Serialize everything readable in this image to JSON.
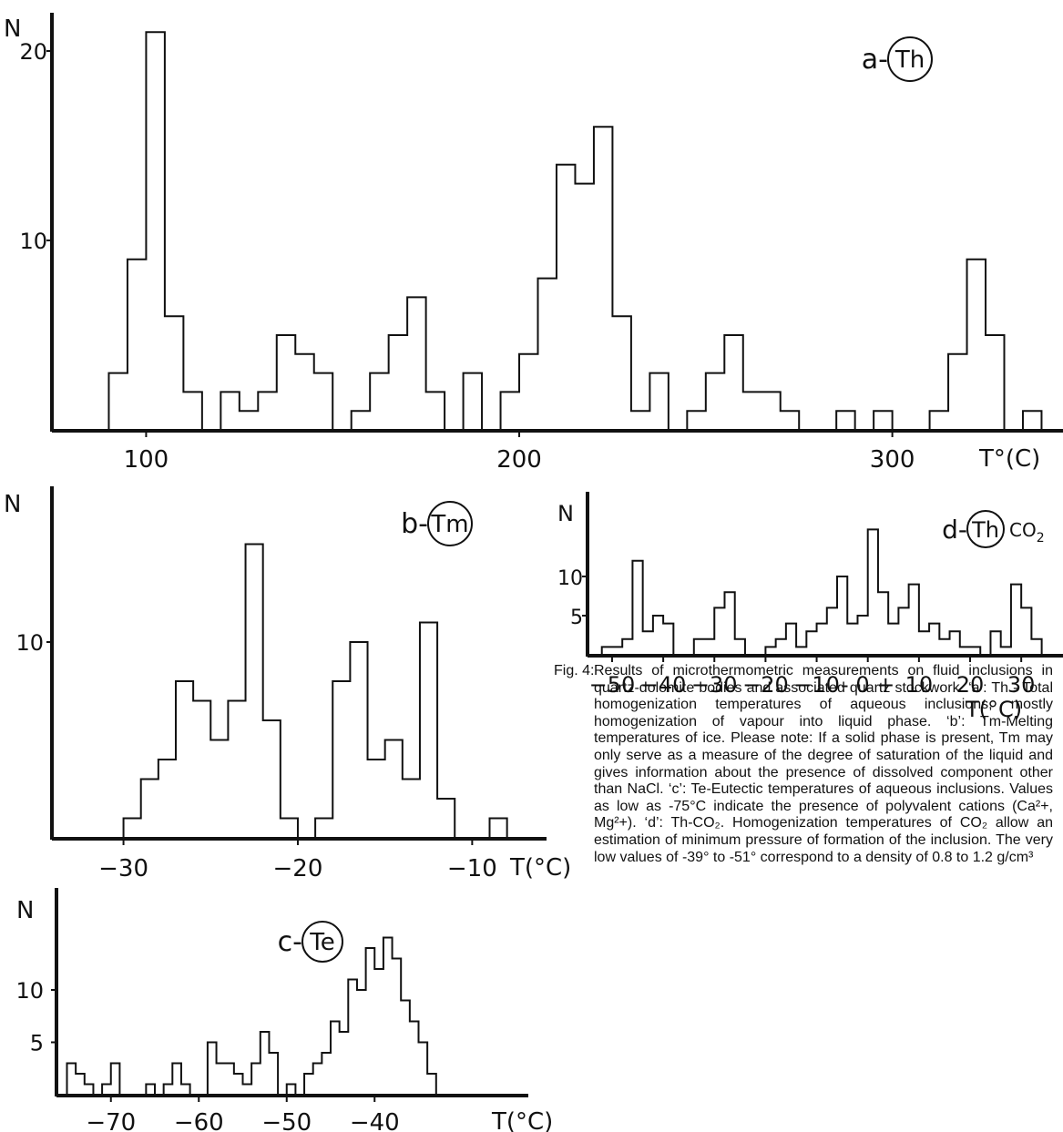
{
  "chart_data": [
    {
      "id": "a",
      "type": "histogram",
      "title": "a-(Th)",
      "title_prefix": "a-",
      "title_ring": "Th",
      "title_suffix": "",
      "ylabel": "N",
      "xlabel": "T°(C)",
      "x_ticks": [
        100,
        200,
        300
      ],
      "y_ticks": [
        10,
        20
      ],
      "xlim": [
        80,
        345
      ],
      "ylim": [
        0,
        22
      ],
      "bin_width": 5,
      "bins": [
        {
          "x": 90,
          "n": 3
        },
        {
          "x": 95,
          "n": 9
        },
        {
          "x": 100,
          "n": 21
        },
        {
          "x": 105,
          "n": 6
        },
        {
          "x": 110,
          "n": 2
        },
        {
          "x": 120,
          "n": 2
        },
        {
          "x": 125,
          "n": 1
        },
        {
          "x": 130,
          "n": 2
        },
        {
          "x": 135,
          "n": 5
        },
        {
          "x": 140,
          "n": 4
        },
        {
          "x": 145,
          "n": 3
        },
        {
          "x": 155,
          "n": 1
        },
        {
          "x": 160,
          "n": 3
        },
        {
          "x": 165,
          "n": 5
        },
        {
          "x": 170,
          "n": 7
        },
        {
          "x": 175,
          "n": 2
        },
        {
          "x": 185,
          "n": 3
        },
        {
          "x": 195,
          "n": 2
        },
        {
          "x": 200,
          "n": 4
        },
        {
          "x": 205,
          "n": 8
        },
        {
          "x": 210,
          "n": 14
        },
        {
          "x": 215,
          "n": 13
        },
        {
          "x": 220,
          "n": 16
        },
        {
          "x": 225,
          "n": 6
        },
        {
          "x": 230,
          "n": 1
        },
        {
          "x": 235,
          "n": 3
        },
        {
          "x": 245,
          "n": 1
        },
        {
          "x": 250,
          "n": 3
        },
        {
          "x": 255,
          "n": 5
        },
        {
          "x": 260,
          "n": 2
        },
        {
          "x": 265,
          "n": 2
        },
        {
          "x": 270,
          "n": 1
        },
        {
          "x": 285,
          "n": 1
        },
        {
          "x": 295,
          "n": 1
        },
        {
          "x": 310,
          "n": 1
        },
        {
          "x": 315,
          "n": 4
        },
        {
          "x": 320,
          "n": 9
        },
        {
          "x": 325,
          "n": 5
        },
        {
          "x": 335,
          "n": 1
        }
      ]
    },
    {
      "id": "b",
      "type": "histogram",
      "title": "b-(Tm)",
      "title_prefix": "b-",
      "title_ring": "Tm",
      "title_suffix": "",
      "ylabel": "N",
      "xlabel": "T(°C)",
      "x_ticks": [
        -30,
        -20,
        -10
      ],
      "y_ticks": [
        10
      ],
      "xlim": [
        -31.2,
        -7
      ],
      "ylim": [
        0,
        16
      ],
      "bin_width": 1,
      "bins": [
        {
          "x": -30,
          "n": 1
        },
        {
          "x": -29,
          "n": 3
        },
        {
          "x": -28,
          "n": 4
        },
        {
          "x": -27,
          "n": 8
        },
        {
          "x": -26,
          "n": 7
        },
        {
          "x": -25,
          "n": 5
        },
        {
          "x": -24,
          "n": 7
        },
        {
          "x": -23,
          "n": 15
        },
        {
          "x": -22,
          "n": 6
        },
        {
          "x": -21,
          "n": 1
        },
        {
          "x": -19,
          "n": 1
        },
        {
          "x": -18,
          "n": 8
        },
        {
          "x": -17,
          "n": 10
        },
        {
          "x": -16,
          "n": 4
        },
        {
          "x": -15,
          "n": 5
        },
        {
          "x": -14,
          "n": 3
        },
        {
          "x": -13,
          "n": 11
        },
        {
          "x": -12,
          "n": 2
        },
        {
          "x": -9,
          "n": 1
        }
      ]
    },
    {
      "id": "c",
      "type": "histogram",
      "title": "c-(Te)",
      "title_prefix": "c-",
      "title_ring": "Te",
      "title_suffix": "",
      "ylabel": "N",
      "xlabel": "T(°C)",
      "x_ticks": [
        -70,
        -60,
        -50,
        -40
      ],
      "y_ticks": [
        5,
        10
      ],
      "xlim": [
        -75,
        -30
      ],
      "ylim": [
        0,
        16
      ],
      "bin_width": 1,
      "bins": [
        {
          "x": -75,
          "n": 3
        },
        {
          "x": -74,
          "n": 2
        },
        {
          "x": -73,
          "n": 1
        },
        {
          "x": -71,
          "n": 1
        },
        {
          "x": -70,
          "n": 3
        },
        {
          "x": -66,
          "n": 1
        },
        {
          "x": -64,
          "n": 1
        },
        {
          "x": -63,
          "n": 3
        },
        {
          "x": -62,
          "n": 1
        },
        {
          "x": -59,
          "n": 5
        },
        {
          "x": -58,
          "n": 3
        },
        {
          "x": -57,
          "n": 3
        },
        {
          "x": -56,
          "n": 2
        },
        {
          "x": -55,
          "n": 1
        },
        {
          "x": -54,
          "n": 3
        },
        {
          "x": -53,
          "n": 6
        },
        {
          "x": -52,
          "n": 4
        },
        {
          "x": -50,
          "n": 1
        },
        {
          "x": -48,
          "n": 2
        },
        {
          "x": -47,
          "n": 3
        },
        {
          "x": -46,
          "n": 4
        },
        {
          "x": -45,
          "n": 7
        },
        {
          "x": -44,
          "n": 6
        },
        {
          "x": -43,
          "n": 11
        },
        {
          "x": -42,
          "n": 10
        },
        {
          "x": -41,
          "n": 14
        },
        {
          "x": -40,
          "n": 12
        },
        {
          "x": -39,
          "n": 15
        },
        {
          "x": -38,
          "n": 13
        },
        {
          "x": -37,
          "n": 9
        },
        {
          "x": -36,
          "n": 7
        },
        {
          "x": -35,
          "n": 5
        },
        {
          "x": -34,
          "n": 2
        }
      ]
    },
    {
      "id": "d",
      "type": "histogram",
      "title": "d-(Th) CO2",
      "title_prefix": "d-",
      "title_ring": "Th",
      "title_suffix": "CO",
      "title_subscript": "2",
      "ylabel": "N",
      "xlabel": "T(°C)",
      "x_ticks": [
        -50,
        -40,
        -30,
        -20,
        -10,
        "- 0 +",
        10,
        20,
        30
      ],
      "y_ticks": [
        5,
        10
      ],
      "xlim": [
        -54,
        36
      ],
      "ylim": [
        0,
        16
      ],
      "bin_width": 2,
      "bins": [
        {
          "x": -52,
          "n": 1
        },
        {
          "x": -50,
          "n": 1
        },
        {
          "x": -48,
          "n": 2
        },
        {
          "x": -46,
          "n": 12
        },
        {
          "x": -44,
          "n": 3
        },
        {
          "x": -42,
          "n": 5
        },
        {
          "x": -40,
          "n": 4
        },
        {
          "x": -34,
          "n": 2
        },
        {
          "x": -32,
          "n": 2
        },
        {
          "x": -30,
          "n": 6
        },
        {
          "x": -28,
          "n": 8
        },
        {
          "x": -26,
          "n": 2
        },
        {
          "x": -20,
          "n": 1
        },
        {
          "x": -18,
          "n": 2
        },
        {
          "x": -16,
          "n": 4
        },
        {
          "x": -14,
          "n": 1
        },
        {
          "x": -12,
          "n": 3
        },
        {
          "x": -10,
          "n": 4
        },
        {
          "x": -8,
          "n": 6
        },
        {
          "x": -6,
          "n": 10
        },
        {
          "x": -4,
          "n": 4
        },
        {
          "x": -2,
          "n": 5
        },
        {
          "x": 0,
          "n": 16
        },
        {
          "x": 2,
          "n": 8
        },
        {
          "x": 4,
          "n": 4
        },
        {
          "x": 6,
          "n": 6
        },
        {
          "x": 8,
          "n": 9
        },
        {
          "x": 10,
          "n": 3
        },
        {
          "x": 12,
          "n": 4
        },
        {
          "x": 14,
          "n": 2
        },
        {
          "x": 16,
          "n": 3
        },
        {
          "x": 18,
          "n": 1
        },
        {
          "x": 20,
          "n": 1
        },
        {
          "x": 24,
          "n": 3
        },
        {
          "x": 26,
          "n": 1
        },
        {
          "x": 28,
          "n": 9
        },
        {
          "x": 30,
          "n": 6
        },
        {
          "x": 32,
          "n": 2
        }
      ]
    }
  ],
  "caption": {
    "label": "Fig. 4:",
    "text": "Results of microthermometric measurements on fluid inclusions in quartz-dolomite bodies and associated quartz stockwork. ‘a’: Th - Total homogenization temperatures of aqueous inclusions, mostly homogenization of vapour into liquid phase. ‘b’: Tm-Melting temperatures of ice. Please note: If a solid phase is present, Tm may only serve as a measure of the degree of saturation of the liquid and gives information about the presence of dissolved component other than NaCl. ‘c’: Te-Eutectic temperatures of aqueous inclusions. Values as low as -75°C indicate the presence of polyvalent cations (Ca²+, Mg²+). ‘d’: Th-CO₂. Homogenization temperatures of CO₂ allow an estimation of minimum pressure of formation of the inclusion. The very low values of -39° to -51° correspond to a density of 0.8 to 1.2 g/cm³"
  }
}
